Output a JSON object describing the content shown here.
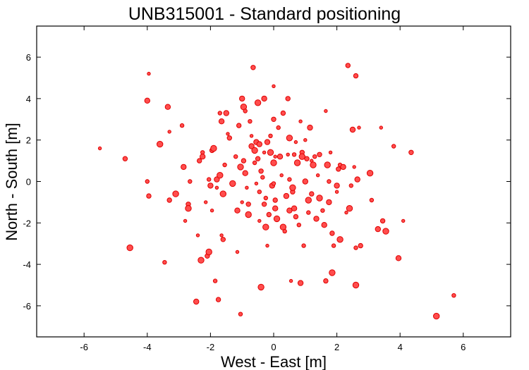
{
  "chart_data": {
    "type": "scatter",
    "title": "UNB315001 - Standard positioning",
    "xlabel": "West - East [m]",
    "ylabel": "North - South [m]",
    "xlim": [
      -7.5,
      7.5
    ],
    "ylim": [
      -7.5,
      7.5
    ],
    "x_ticks": [
      -6,
      -4,
      -2,
      0,
      2,
      4,
      6
    ],
    "y_ticks": [
      -6,
      -4,
      -2,
      0,
      2,
      4,
      6
    ],
    "x_tick_labels": [
      "-6",
      "-4",
      "-2",
      "0",
      "2",
      "4",
      "6"
    ],
    "y_tick_labels": [
      "-6",
      "-4",
      "-2",
      "0",
      "2",
      "4",
      "6"
    ],
    "grid": false,
    "legend": false,
    "marker_color": "#ff4d4d",
    "marker_edge_color": "#e00000",
    "points": [
      [
        -5.5,
        1.6
      ],
      [
        -4.7,
        1.1
      ],
      [
        -4.55,
        -3.2
      ],
      [
        -4.0,
        0.0
      ],
      [
        -4.0,
        3.9
      ],
      [
        -3.95,
        5.2
      ],
      [
        -3.95,
        -0.7
      ],
      [
        -3.6,
        1.8
      ],
      [
        -3.45,
        -3.9
      ],
      [
        -3.35,
        3.6
      ],
      [
        -3.3,
        2.4
      ],
      [
        -3.3,
        -0.9
      ],
      [
        -3.1,
        -0.6
      ],
      [
        -2.9,
        2.7
      ],
      [
        -2.85,
        0.7
      ],
      [
        -2.8,
        -1.9
      ],
      [
        -2.7,
        -1.1
      ],
      [
        -2.7,
        -1.3
      ],
      [
        -2.65,
        0.0
      ],
      [
        -2.45,
        -5.8
      ],
      [
        -2.4,
        -2.6
      ],
      [
        -2.35,
        1.0
      ],
      [
        -2.3,
        -3.8
      ],
      [
        -2.25,
        1.4
      ],
      [
        -2.25,
        1.2
      ],
      [
        -2.15,
        -1.0
      ],
      [
        -2.1,
        -3.6
      ],
      [
        -2.05,
        -3.4
      ],
      [
        -2.05,
        0.1
      ],
      [
        -2.0,
        -0.2
      ],
      [
        -1.95,
        -1.4
      ],
      [
        -1.95,
        1.5
      ],
      [
        -1.9,
        1.6
      ],
      [
        -1.85,
        -4.8
      ],
      [
        -1.8,
        0.1
      ],
      [
        -1.8,
        -0.3
      ],
      [
        -1.75,
        -5.7
      ],
      [
        -1.7,
        0.3
      ],
      [
        -1.7,
        3.3
      ],
      [
        -1.65,
        2.9
      ],
      [
        -1.65,
        -2.6
      ],
      [
        -1.6,
        -2.8
      ],
      [
        -1.6,
        -0.6
      ],
      [
        -1.55,
        0.8
      ],
      [
        -1.5,
        3.3
      ],
      [
        -1.45,
        2.3
      ],
      [
        -1.4,
        2.1
      ],
      [
        -1.3,
        -0.1
      ],
      [
        -1.2,
        1.2
      ],
      [
        -1.15,
        -1.4
      ],
      [
        -1.15,
        -3.4
      ],
      [
        -1.1,
        2.7
      ],
      [
        -1.05,
        0.7
      ],
      [
        -1.05,
        -6.4
      ],
      [
        -1.0,
        4.0
      ],
      [
        -1.0,
        -1.0
      ],
      [
        -0.95,
        1.0
      ],
      [
        -0.95,
        3.6
      ],
      [
        -0.9,
        3.4
      ],
      [
        -0.9,
        0.4
      ],
      [
        -0.85,
        -0.3
      ],
      [
        -0.8,
        -1.1
      ],
      [
        -0.8,
        -1.6
      ],
      [
        -0.75,
        2.9
      ],
      [
        -0.7,
        1.7
      ],
      [
        -0.7,
        2.2
      ],
      [
        -0.65,
        5.5
      ],
      [
        -0.6,
        1.5
      ],
      [
        -0.6,
        0.9
      ],
      [
        -0.55,
        1.9
      ],
      [
        -0.55,
        -0.1
      ],
      [
        -0.5,
        1.1
      ],
      [
        -0.5,
        3.8
      ],
      [
        -0.45,
        -0.5
      ],
      [
        -0.45,
        1.8
      ],
      [
        -0.45,
        -1.9
      ],
      [
        -0.4,
        0.5
      ],
      [
        -0.4,
        -5.1
      ],
      [
        -0.35,
        0.2
      ],
      [
        -0.3,
        4.0
      ],
      [
        -0.3,
        1.4
      ],
      [
        -0.3,
        -1.1
      ],
      [
        -0.25,
        -2.2
      ],
      [
        -0.25,
        -0.8
      ],
      [
        -0.2,
        1.9
      ],
      [
        -0.2,
        -3.1
      ],
      [
        -0.15,
        -1.6
      ],
      [
        -0.1,
        1.4
      ],
      [
        -0.1,
        2.2
      ],
      [
        -0.05,
        -0.2
      ],
      [
        0.0,
        4.6
      ],
      [
        0.0,
        3.0
      ],
      [
        0.0,
        0.9
      ],
      [
        0.0,
        -0.1
      ],
      [
        0.05,
        -1.3
      ],
      [
        0.05,
        1.2
      ],
      [
        0.05,
        -0.9
      ],
      [
        0.1,
        -1.8
      ],
      [
        0.15,
        2.6
      ],
      [
        0.2,
        1.2
      ],
      [
        0.25,
        0.3
      ],
      [
        0.3,
        3.3
      ],
      [
        0.3,
        -2.2
      ],
      [
        0.35,
        -2.4
      ],
      [
        0.4,
        -0.7
      ],
      [
        0.45,
        1.3
      ],
      [
        0.45,
        4.0
      ],
      [
        0.5,
        2.1
      ],
      [
        0.5,
        0.1
      ],
      [
        0.5,
        -1.4
      ],
      [
        0.55,
        -4.8
      ],
      [
        0.6,
        -0.5
      ],
      [
        0.6,
        -0.3
      ],
      [
        0.65,
        1.3
      ],
      [
        0.65,
        -1.3
      ],
      [
        0.7,
        1.9
      ],
      [
        0.7,
        -1.7
      ],
      [
        0.75,
        0.9
      ],
      [
        0.8,
        -2.1
      ],
      [
        0.85,
        -4.9
      ],
      [
        0.85,
        2.9
      ],
      [
        0.9,
        1.4
      ],
      [
        0.9,
        1.2
      ],
      [
        0.95,
        -3.1
      ],
      [
        1.0,
        0.0
      ],
      [
        1.0,
        2.0
      ],
      [
        1.05,
        1.1
      ],
      [
        1.1,
        -0.9
      ],
      [
        1.1,
        -1.5
      ],
      [
        1.15,
        2.6
      ],
      [
        1.2,
        1.0
      ],
      [
        1.2,
        -0.6
      ],
      [
        1.25,
        0.8
      ],
      [
        1.3,
        1.2
      ],
      [
        1.35,
        -1.8
      ],
      [
        1.4,
        0.3
      ],
      [
        1.45,
        1.3
      ],
      [
        1.45,
        -0.8
      ],
      [
        1.55,
        -1.4
      ],
      [
        1.6,
        -2.1
      ],
      [
        1.65,
        3.4
      ],
      [
        1.65,
        -4.8
      ],
      [
        1.7,
        0.8
      ],
      [
        1.75,
        0.0
      ],
      [
        1.75,
        -1.0
      ],
      [
        1.8,
        1.4
      ],
      [
        1.85,
        -2.5
      ],
      [
        1.85,
        -4.4
      ],
      [
        1.9,
        -3.1
      ],
      [
        2.0,
        -0.2
      ],
      [
        2.0,
        -0.5
      ],
      [
        2.05,
        0.6
      ],
      [
        2.1,
        -2.8
      ],
      [
        2.1,
        0.8
      ],
      [
        2.2,
        0.7
      ],
      [
        2.3,
        -1.5
      ],
      [
        2.35,
        5.6
      ],
      [
        2.4,
        -1.3
      ],
      [
        2.45,
        -0.2
      ],
      [
        2.5,
        2.5
      ],
      [
        2.55,
        0.7
      ],
      [
        2.6,
        5.1
      ],
      [
        2.6,
        -5.0
      ],
      [
        2.6,
        -3.2
      ],
      [
        2.65,
        0.1
      ],
      [
        2.7,
        2.6
      ],
      [
        2.75,
        -3.1
      ],
      [
        3.05,
        0.4
      ],
      [
        3.1,
        -0.9
      ],
      [
        3.3,
        -2.3
      ],
      [
        3.4,
        2.6
      ],
      [
        3.45,
        -1.9
      ],
      [
        3.55,
        -2.4
      ],
      [
        3.8,
        1.7
      ],
      [
        3.95,
        -3.7
      ],
      [
        4.1,
        -1.9
      ],
      [
        4.35,
        1.4
      ],
      [
        5.15,
        -6.5
      ],
      [
        5.7,
        -5.5
      ]
    ]
  }
}
